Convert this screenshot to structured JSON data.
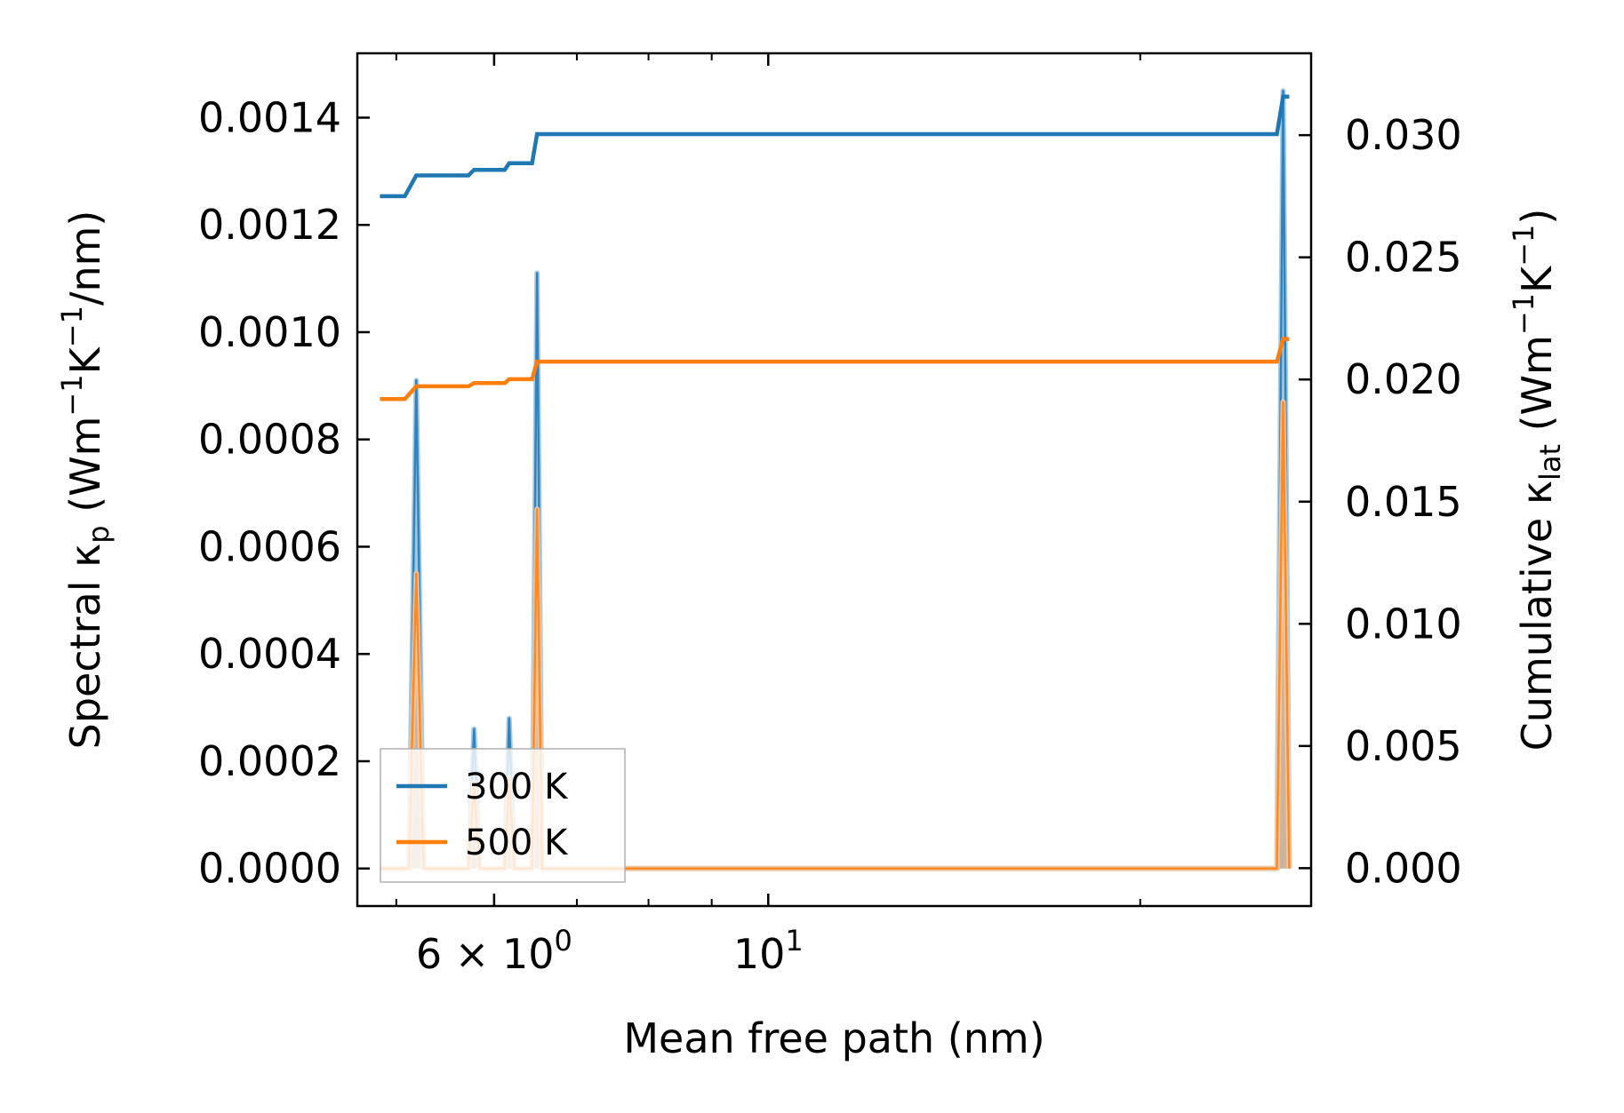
{
  "chart_data": {
    "type": "line",
    "xlabel": "Mean free path (nm)",
    "xscale": "log",
    "xlim": [
      4.65,
      27.5
    ],
    "x_ticks": [
      {
        "value": 6,
        "label_base": "6 × 10",
        "label_exp": "0"
      },
      {
        "value": 10,
        "label_base": "10",
        "label_exp": "1"
      }
    ],
    "x_minor_ticks": [
      5,
      7,
      8,
      9,
      20
    ],
    "y_left": {
      "label_prefix": "Spectral κ",
      "label_sub": "p",
      "label_unit_parts": [
        {
          "t": " (Wm"
        },
        {
          "t": "−1",
          "sup": true
        },
        {
          "t": "K"
        },
        {
          "t": "−1",
          "sup": true
        },
        {
          "t": "/nm)"
        }
      ],
      "ylim": [
        -7e-05,
        0.00152
      ],
      "ticks": [
        0,
        0.0002,
        0.0004,
        0.0006,
        0.0008,
        0.001,
        0.0012,
        0.0014
      ],
      "tick_labels": [
        "0.0000",
        "0.0002",
        "0.0004",
        "0.0006",
        "0.0008",
        "0.0010",
        "0.0012",
        "0.0014"
      ]
    },
    "y_right": {
      "label_prefix": "Cumulative κ",
      "label_sub": "lat",
      "label_unit_parts": [
        {
          "t": " (Wm"
        },
        {
          "t": "−1",
          "sup": true
        },
        {
          "t": "K"
        },
        {
          "t": "−1",
          "sup": true
        },
        {
          "t": ")"
        }
      ],
      "ylim": [
        -0.00155,
        0.03335
      ],
      "ticks": [
        0,
        0.005,
        0.01,
        0.015,
        0.02,
        0.025,
        0.03
      ],
      "tick_labels": [
        "0.000",
        "0.005",
        "0.010",
        "0.015",
        "0.020",
        "0.025",
        "0.030"
      ]
    },
    "series": [
      {
        "name": "300 K",
        "color": "#1f77b4",
        "spectral": [
          [
            4.85,
            0
          ],
          [
            5.12,
            0
          ],
          [
            5.19,
            0.00091
          ],
          [
            5.26,
            0
          ],
          [
            5.72,
            0
          ],
          [
            5.78,
            0.00026
          ],
          [
            5.84,
            0
          ],
          [
            6.12,
            0
          ],
          [
            6.17,
            0.00028
          ],
          [
            6.23,
            0
          ],
          [
            6.44,
            0
          ],
          [
            6.5,
            0.00111
          ],
          [
            6.56,
            0
          ],
          [
            25.8,
            0
          ],
          [
            26.1,
            0.00145
          ],
          [
            26.4,
            0
          ]
        ],
        "cumulative": [
          [
            4.85,
            0.0275
          ],
          [
            5.08,
            0.0275
          ],
          [
            5.19,
            0.02835
          ],
          [
            5.72,
            0.02835
          ],
          [
            5.78,
            0.02858
          ],
          [
            6.12,
            0.02858
          ],
          [
            6.17,
            0.02885
          ],
          [
            6.44,
            0.02885
          ],
          [
            6.5,
            0.03004
          ],
          [
            25.8,
            0.03004
          ],
          [
            26.1,
            0.03158
          ],
          [
            26.4,
            0.03158
          ]
        ]
      },
      {
        "name": "500 K",
        "color": "#ff7f0e",
        "spectral": [
          [
            4.85,
            0
          ],
          [
            5.12,
            0
          ],
          [
            5.19,
            0.00055
          ],
          [
            5.26,
            0
          ],
          [
            5.72,
            0
          ],
          [
            5.78,
            0.00016
          ],
          [
            5.84,
            0
          ],
          [
            6.12,
            0
          ],
          [
            6.17,
            0.00017
          ],
          [
            6.23,
            0
          ],
          [
            6.44,
            0
          ],
          [
            6.5,
            0.00067
          ],
          [
            6.56,
            0
          ],
          [
            25.8,
            0
          ],
          [
            26.1,
            0.00087
          ],
          [
            26.4,
            0
          ]
        ],
        "cumulative": [
          [
            4.85,
            0.0192
          ],
          [
            5.08,
            0.0192
          ],
          [
            5.19,
            0.01972
          ],
          [
            5.72,
            0.01972
          ],
          [
            5.78,
            0.01985
          ],
          [
            6.12,
            0.01985
          ],
          [
            6.17,
            0.02001
          ],
          [
            6.44,
            0.02001
          ],
          [
            6.5,
            0.02073
          ],
          [
            25.8,
            0.02073
          ],
          [
            26.1,
            0.02166
          ],
          [
            26.4,
            0.02166
          ]
        ]
      }
    ],
    "legend": {
      "position": "lower-left",
      "entries": [
        "300 K",
        "500 K"
      ]
    },
    "grid": false
  }
}
